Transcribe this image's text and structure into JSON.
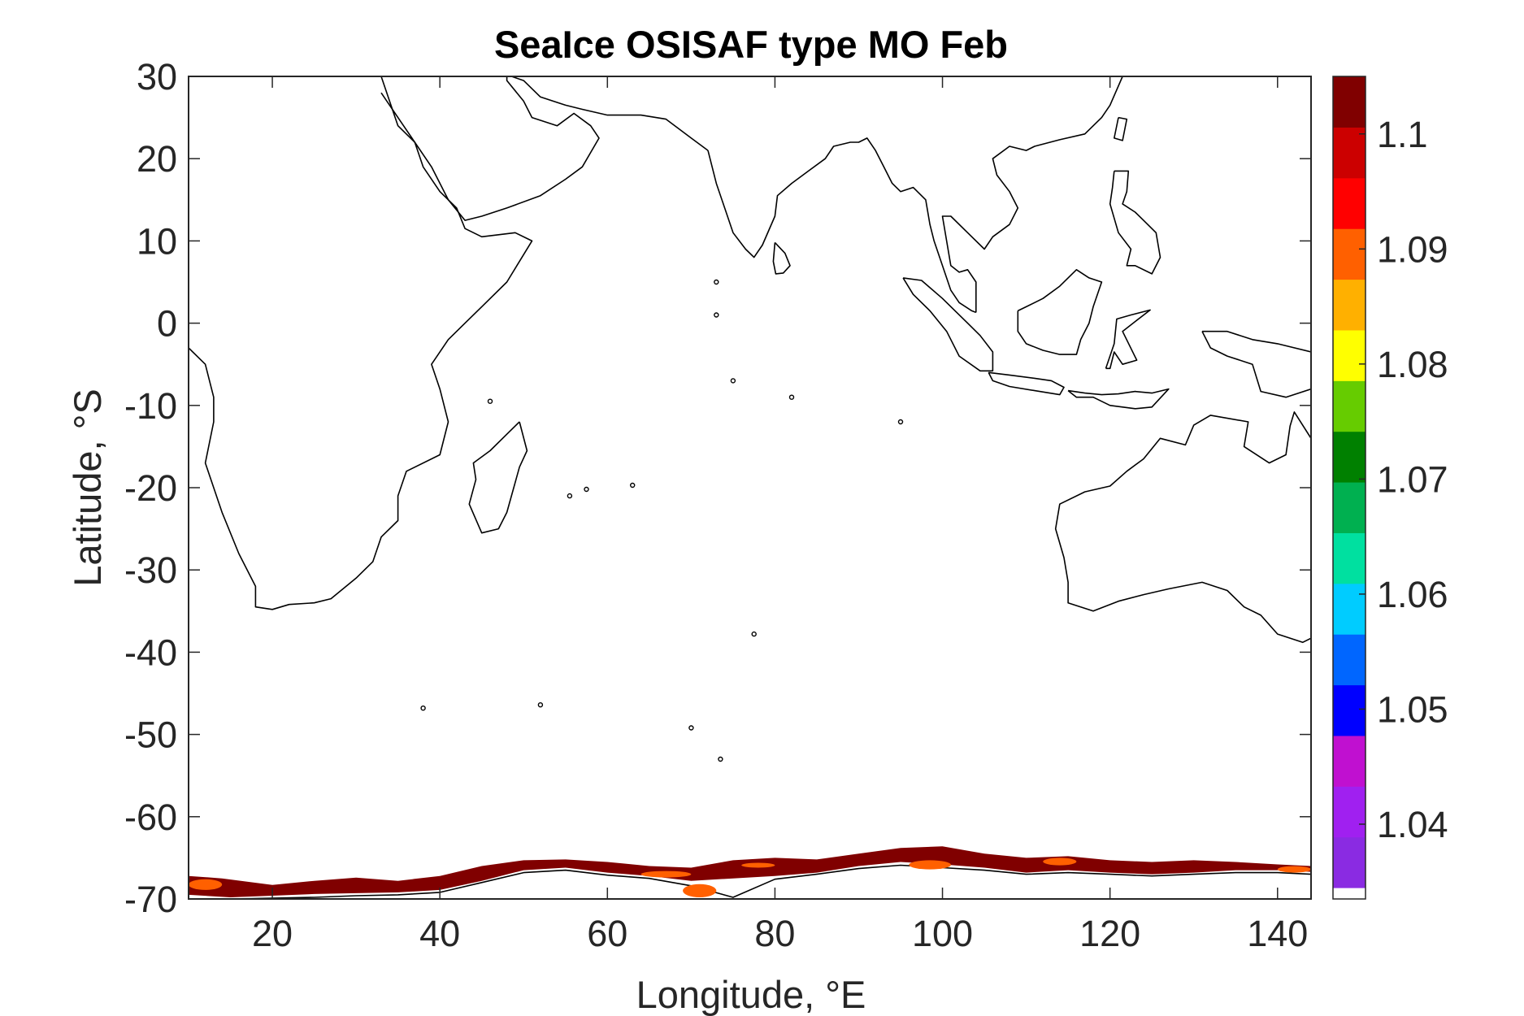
{
  "title": "SeaIce OSISAF type MO Feb",
  "xlabel": "Longitude, °E",
  "ylabel": "Latitude, °S",
  "chart_data": {
    "type": "heatmap",
    "title": "SeaIce OSISAF type MO Feb",
    "xlabel": "Longitude, °E",
    "ylabel": "Latitude, °S",
    "xlim": [
      10,
      144
    ],
    "ylim": [
      -70,
      30
    ],
    "xticks": [
      20,
      40,
      60,
      80,
      100,
      120,
      140
    ],
    "xtick_labels": [
      "20",
      "40",
      "60",
      "80",
      "100",
      "120",
      "140"
    ],
    "yticks": [
      30,
      20,
      10,
      0,
      -10,
      -20,
      -30,
      -40,
      -50,
      -60,
      -70
    ],
    "ytick_labels": [
      "30",
      "20",
      "10",
      "0",
      "-10",
      "-20",
      "-30",
      "-40",
      "-50",
      "-60",
      "-70"
    ],
    "grid": false,
    "colorbar": {
      "range": [
        1.0335,
        1.105
      ],
      "ticks": [
        1.1,
        1.09,
        1.08,
        1.07,
        1.06,
        1.05,
        1.04
      ],
      "tick_labels": [
        "1.1",
        "1.09",
        "1.08",
        "1.07",
        "1.06",
        "1.05",
        "1.04"
      ],
      "colormap": [
        "#8a2be2",
        "#a020f0",
        "#c010d0",
        "#0000ff",
        "#0066ff",
        "#00ccff",
        "#00e0a0",
        "#00b050",
        "#008000",
        "#66cc00",
        "#ffff00",
        "#ffb000",
        "#ff6000",
        "#ff0000",
        "#cc0000",
        "#800000"
      ],
      "nodata_color": "#ffffff"
    },
    "ice_edge": {
      "northern_edge": [
        [
          10,
          -67.2
        ],
        [
          14,
          -67.5
        ],
        [
          20,
          -68.3
        ],
        [
          25,
          -67.8
        ],
        [
          30,
          -67.4
        ],
        [
          35,
          -67.8
        ],
        [
          40,
          -67.2
        ],
        [
          45,
          -66.0
        ],
        [
          50,
          -65.3
        ],
        [
          55,
          -65.2
        ],
        [
          60,
          -65.5
        ],
        [
          65,
          -66.0
        ],
        [
          70,
          -66.2
        ],
        [
          75,
          -65.3
        ],
        [
          80,
          -65.0
        ],
        [
          85,
          -65.2
        ],
        [
          90,
          -64.5
        ],
        [
          95,
          -63.8
        ],
        [
          100,
          -63.6
        ],
        [
          105,
          -64.5
        ],
        [
          110,
          -65.0
        ],
        [
          115,
          -64.8
        ],
        [
          120,
          -65.3
        ],
        [
          125,
          -65.5
        ],
        [
          130,
          -65.3
        ],
        [
          135,
          -65.5
        ],
        [
          140,
          -65.8
        ],
        [
          144,
          -66.0
        ]
      ],
      "southern_edge": [
        [
          10,
          -69.5
        ],
        [
          15,
          -69.8
        ],
        [
          20,
          -69.6
        ],
        [
          25,
          -69.4
        ],
        [
          30,
          -69.3
        ],
        [
          35,
          -69.2
        ],
        [
          40,
          -68.9
        ],
        [
          45,
          -67.8
        ],
        [
          50,
          -66.5
        ],
        [
          55,
          -66.2
        ],
        [
          60,
          -66.8
        ],
        [
          65,
          -67.2
        ],
        [
          70,
          -67.8
        ],
        [
          75,
          -67.5
        ],
        [
          80,
          -67.2
        ],
        [
          85,
          -66.8
        ],
        [
          90,
          -66.0
        ],
        [
          95,
          -65.5
        ],
        [
          100,
          -65.8
        ],
        [
          105,
          -66.2
        ],
        [
          110,
          -66.8
        ],
        [
          115,
          -66.5
        ],
        [
          120,
          -66.8
        ],
        [
          125,
          -67.0
        ],
        [
          130,
          -66.8
        ],
        [
          135,
          -66.5
        ],
        [
          140,
          -66.5
        ],
        [
          144,
          -66.7
        ]
      ],
      "dominant_value": 1.105,
      "patches": [
        {
          "lon": [
            10,
            14
          ],
          "lat": [
            -68.9,
            -67.6
          ],
          "value": 1.091
        },
        {
          "lon": [
            69,
            73
          ],
          "lat": [
            -69.8,
            -68.2
          ],
          "value": 1.091
        },
        {
          "lon": [
            64,
            70
          ],
          "lat": [
            -67.4,
            -66.6
          ],
          "value": 1.091
        },
        {
          "lon": [
            76,
            80
          ],
          "lat": [
            -66.2,
            -65.6
          ],
          "value": 1.091
        },
        {
          "lon": [
            96,
            101
          ],
          "lat": [
            -66.4,
            -65.3
          ],
          "value": 1.091
        },
        {
          "lon": [
            112,
            116
          ],
          "lat": [
            -65.9,
            -65.0
          ],
          "value": 1.091
        },
        {
          "lon": [
            140,
            144
          ],
          "lat": [
            -66.8,
            -66.0
          ],
          "value": 1.091
        }
      ]
    }
  }
}
